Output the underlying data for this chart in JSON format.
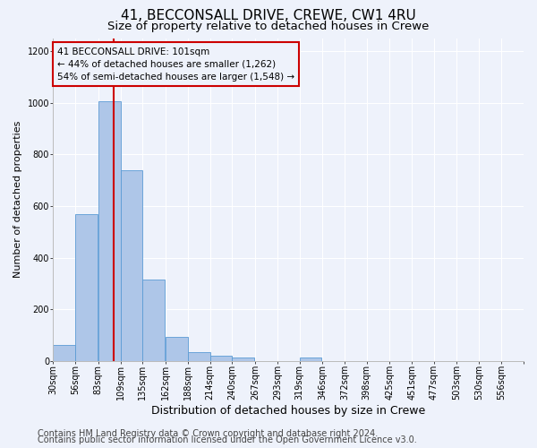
{
  "title_line1": "41, BECCONSALL DRIVE, CREWE, CW1 4RU",
  "title_line2": "Size of property relative to detached houses in Crewe",
  "xlabel": "Distribution of detached houses by size in Crewe",
  "ylabel": "Number of detached properties",
  "bin_labels": [
    "30sqm",
    "56sqm",
    "83sqm",
    "109sqm",
    "135sqm",
    "162sqm",
    "188sqm",
    "214sqm",
    "240sqm",
    "267sqm",
    "293sqm",
    "319sqm",
    "346sqm",
    "372sqm",
    "398sqm",
    "425sqm",
    "451sqm",
    "477sqm",
    "503sqm",
    "530sqm",
    "556sqm"
  ],
  "bin_edges": [
    30,
    56,
    83,
    109,
    135,
    162,
    188,
    214,
    240,
    267,
    293,
    319,
    346,
    372,
    398,
    425,
    451,
    477,
    503,
    530,
    556
  ],
  "bar_heights": [
    62,
    570,
    1005,
    740,
    315,
    95,
    35,
    22,
    14,
    0,
    0,
    15,
    0,
    0,
    0,
    0,
    0,
    0,
    0,
    0
  ],
  "bar_color": "#aec6e8",
  "bar_edge_color": "#5b9bd5",
  "property_size": 101,
  "property_line_color": "#cc0000",
  "annotation_line1": "41 BECCONSALL DRIVE: 101sqm",
  "annotation_line2": "← 44% of detached houses are smaller (1,262)",
  "annotation_line3": "54% of semi-detached houses are larger (1,548) →",
  "annotation_box_color": "#cc0000",
  "ylim": [
    0,
    1250
  ],
  "yticks": [
    0,
    200,
    400,
    600,
    800,
    1000,
    1200
  ],
  "footer_line1": "Contains HM Land Registry data © Crown copyright and database right 2024.",
  "footer_line2": "Contains public sector information licensed under the Open Government Licence v3.0.",
  "background_color": "#eef2fb",
  "grid_color": "#ffffff",
  "title1_fontsize": 11,
  "title2_fontsize": 9.5,
  "xlabel_fontsize": 9,
  "ylabel_fontsize": 8,
  "tick_fontsize": 7,
  "footer_fontsize": 7,
  "annotation_fontsize": 7.5
}
